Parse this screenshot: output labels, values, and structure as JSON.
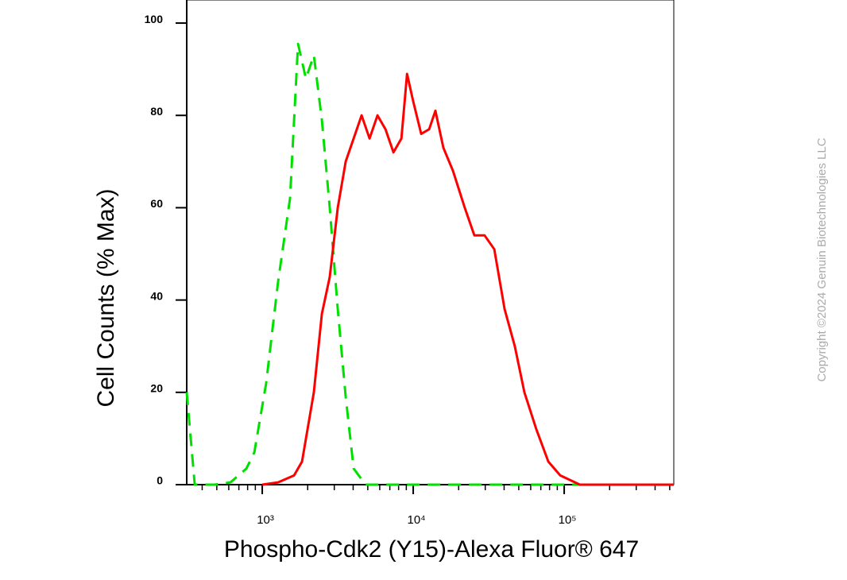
{
  "chart_data": {
    "type": "line",
    "x_label": "Phospho-Cdk2 (Y15)-Alexa Fluor® 647",
    "y_label": "Cell Counts (% Max)",
    "watermark": "Copyright ©2024 Genuin Biotechnologies LLC",
    "xscale": "log",
    "xlim": [
      316,
      532000
    ],
    "ylim": [
      0,
      105
    ],
    "xticks": [
      {
        "value": 1000,
        "label": "10³"
      },
      {
        "value": 10000,
        "label": "10⁴"
      },
      {
        "value": 100000,
        "label": "10⁵"
      }
    ],
    "xminorticks": [
      400,
      500,
      600,
      700,
      800,
      900,
      2000,
      3000,
      4000,
      5000,
      6000,
      7000,
      8000,
      9000,
      20000,
      30000,
      40000,
      50000,
      60000,
      70000,
      80000,
      90000,
      200000,
      300000,
      400000,
      500000
    ],
    "yticks": [
      0,
      20,
      40,
      60,
      80,
      100
    ],
    "series": [
      {
        "color": "#00e000",
        "dash": true,
        "x": [
          316,
          357,
          483,
          616,
          785,
          886,
          1062,
          1274,
          1528,
          1726,
          1947,
          2198,
          2482,
          2800,
          3162,
          3571,
          4030,
          4830,
          532000
        ],
        "values": [
          20,
          0,
          0,
          0.5,
          3.5,
          7,
          22,
          44,
          62,
          95.5,
          88,
          93,
          79,
          60,
          38,
          19,
          3.5,
          0,
          0
        ]
      },
      {
        "color": "#ff0000",
        "dash": false,
        "x": [
          1000,
          1274,
          1624,
          1833,
          2198,
          2482,
          2800,
          3162,
          3571,
          4030,
          4551,
          5138,
          5801,
          6550,
          7394,
          8349,
          9097,
          10000,
          11290,
          12740,
          14020,
          15830,
          18330,
          21950,
          25400,
          29700,
          34450,
          40300,
          47100,
          54500,
          65400,
          78500,
          94100,
          127000,
          532000
        ],
        "values": [
          0,
          0.5,
          2,
          5,
          20,
          37,
          45,
          60,
          70,
          75,
          80,
          75,
          80,
          77,
          72,
          75,
          89,
          83,
          76,
          77,
          81,
          73,
          68,
          60,
          54,
          54,
          51,
          38,
          30,
          20,
          12,
          5,
          2,
          0,
          0
        ]
      }
    ]
  }
}
